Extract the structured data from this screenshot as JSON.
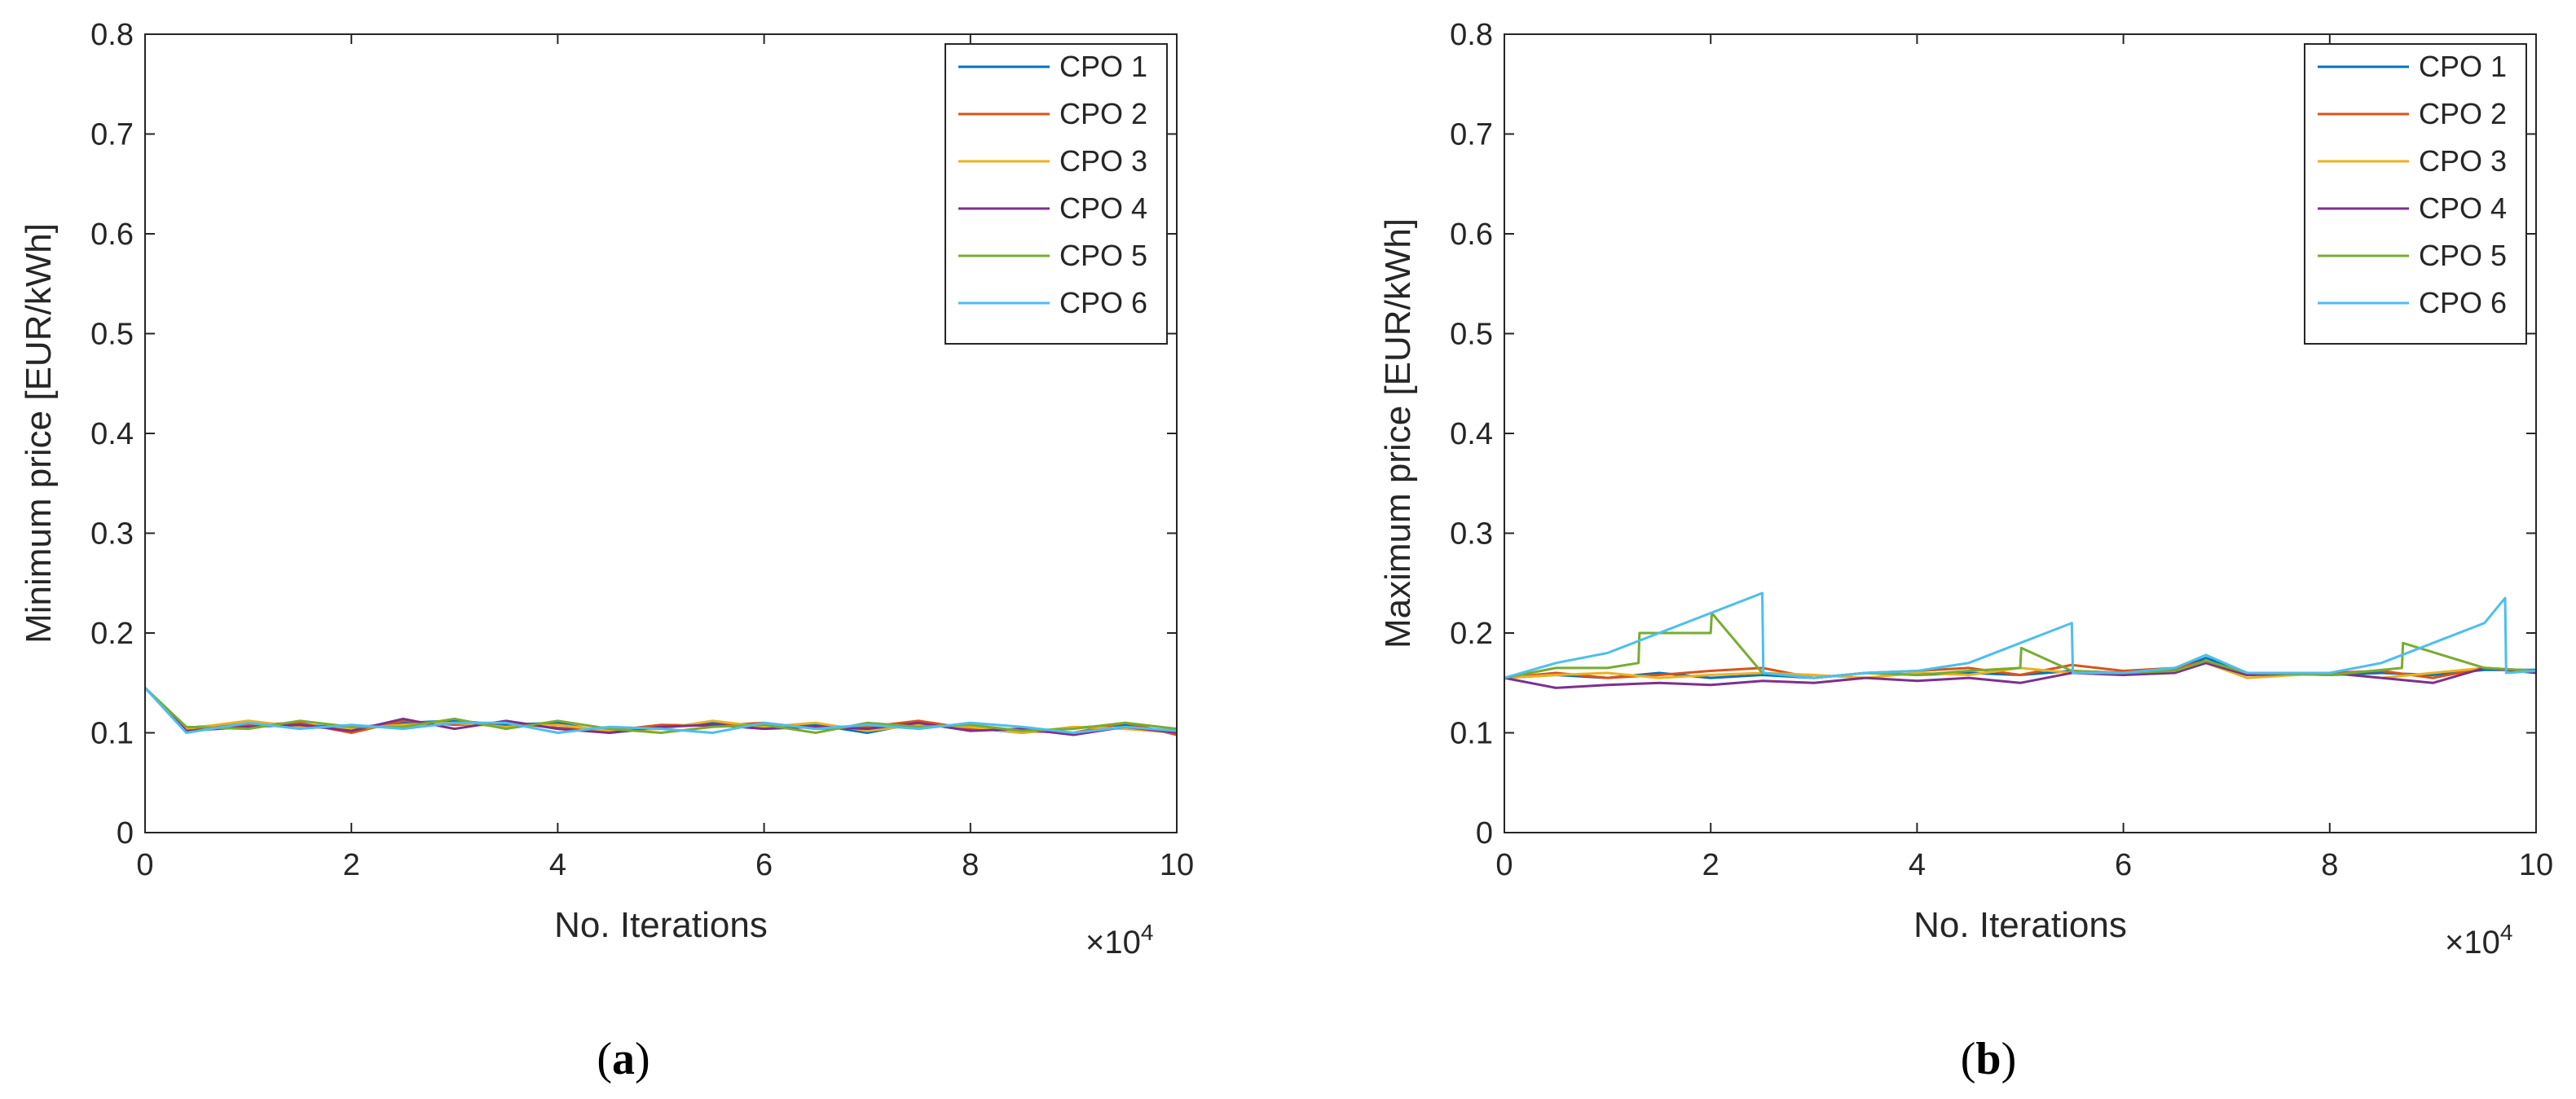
{
  "colors": {
    "CPO 1": "#0072BD",
    "CPO 2": "#D95319",
    "CPO 3": "#EDB120",
    "CPO 4": "#7E2F8E",
    "CPO 5": "#77AC30",
    "CPO 6": "#4DBEEE"
  },
  "chart_data": [
    {
      "id": "a",
      "type": "line",
      "caption_letter": "a",
      "ylabel": "Minimum price [EUR/kWh]",
      "xlabel": "No. Iterations",
      "x_multiplier": "×10",
      "x_multiplier_exp": "4",
      "xlim": [
        0,
        10
      ],
      "ylim": [
        0,
        0.8
      ],
      "xticks": [
        0,
        2,
        4,
        6,
        8,
        10
      ],
      "yticks": [
        0,
        0.1,
        0.2,
        0.3,
        0.4,
        0.5,
        0.6,
        0.7,
        0.8
      ],
      "legend_position": "top-right",
      "series": [
        {
          "name": "CPO 1",
          "x": [
            0,
            0.4,
            1,
            1.5,
            2,
            2.5,
            3,
            3.5,
            4,
            4.5,
            5,
            5.5,
            6,
            6.5,
            7,
            7.5,
            8,
            8.5,
            9,
            9.5,
            10
          ],
          "y": [
            0.145,
            0.105,
            0.11,
            0.108,
            0.105,
            0.11,
            0.112,
            0.108,
            0.11,
            0.1,
            0.105,
            0.11,
            0.105,
            0.108,
            0.1,
            0.11,
            0.105,
            0.1,
            0.105,
            0.108,
            0.1
          ]
        },
        {
          "name": "CPO 2",
          "x": [
            0,
            0.4,
            1,
            1.5,
            2,
            2.5,
            3,
            3.5,
            4,
            4.5,
            5,
            5.5,
            6,
            6.5,
            7,
            7.5,
            8,
            8.5,
            9,
            9.5,
            10
          ],
          "y": [
            0.145,
            0.103,
            0.108,
            0.11,
            0.1,
            0.112,
            0.108,
            0.11,
            0.105,
            0.102,
            0.108,
            0.107,
            0.11,
            0.104,
            0.106,
            0.112,
            0.104,
            0.102,
            0.1,
            0.11,
            0.098
          ]
        },
        {
          "name": "CPO 3",
          "x": [
            0,
            0.4,
            1,
            1.5,
            2,
            2.5,
            3,
            3.5,
            4,
            4.5,
            5,
            5.5,
            6,
            6.5,
            7,
            7.5,
            8,
            8.5,
            9,
            9.5,
            10
          ],
          "y": [
            0.145,
            0.104,
            0.112,
            0.106,
            0.104,
            0.108,
            0.11,
            0.106,
            0.108,
            0.102,
            0.104,
            0.112,
            0.106,
            0.11,
            0.102,
            0.108,
            0.106,
            0.1,
            0.106,
            0.104,
            0.1
          ]
        },
        {
          "name": "CPO 4",
          "x": [
            0,
            0.4,
            1,
            1.5,
            2,
            2.5,
            3,
            3.5,
            4,
            4.5,
            5,
            5.5,
            6,
            6.5,
            7,
            7.5,
            8,
            8.5,
            9,
            9.5,
            10
          ],
          "y": [
            0.145,
            0.102,
            0.106,
            0.108,
            0.102,
            0.114,
            0.104,
            0.112,
            0.104,
            0.1,
            0.106,
            0.108,
            0.104,
            0.106,
            0.104,
            0.11,
            0.102,
            0.104,
            0.098,
            0.106,
            0.1
          ]
        },
        {
          "name": "CPO 5",
          "x": [
            0,
            0.4,
            1,
            1.5,
            2,
            2.5,
            3,
            3.5,
            4,
            4.5,
            5,
            5.5,
            6,
            6.5,
            7,
            7.5,
            8,
            8.5,
            9,
            9.5,
            10
          ],
          "y": [
            0.145,
            0.106,
            0.104,
            0.112,
            0.106,
            0.106,
            0.114,
            0.104,
            0.112,
            0.104,
            0.1,
            0.106,
            0.108,
            0.1,
            0.11,
            0.106,
            0.108,
            0.102,
            0.104,
            0.11,
            0.104
          ]
        },
        {
          "name": "CPO 6",
          "x": [
            0,
            0.4,
            1,
            1.5,
            2,
            2.5,
            3,
            3.5,
            4,
            4.5,
            5,
            5.5,
            6,
            6.5,
            7,
            7.5,
            8,
            8.5,
            9,
            9.5,
            10
          ],
          "y": [
            0.145,
            0.1,
            0.11,
            0.104,
            0.108,
            0.104,
            0.11,
            0.11,
            0.1,
            0.106,
            0.104,
            0.1,
            0.11,
            0.104,
            0.108,
            0.104,
            0.11,
            0.106,
            0.1,
            0.106,
            0.102
          ]
        }
      ]
    },
    {
      "id": "b",
      "type": "line",
      "caption_letter": "b",
      "ylabel": "Maximum price [EUR/kWh]",
      "xlabel": "No. Iterations",
      "x_multiplier": "×10",
      "x_multiplier_exp": "4",
      "xlim": [
        0,
        10
      ],
      "ylim": [
        0,
        0.8
      ],
      "xticks": [
        0,
        2,
        4,
        6,
        8,
        10
      ],
      "yticks": [
        0,
        0.1,
        0.2,
        0.3,
        0.4,
        0.5,
        0.6,
        0.7,
        0.8
      ],
      "legend_position": "top-right",
      "series": [
        {
          "name": "CPO 1",
          "x": [
            0,
            0.5,
            1,
            1.5,
            2,
            2.5,
            3,
            3.5,
            4,
            4.5,
            5,
            5.5,
            6,
            6.5,
            6.8,
            7.2,
            8,
            8.5,
            9,
            9.5,
            10
          ],
          "y": [
            0.155,
            0.158,
            0.155,
            0.16,
            0.155,
            0.158,
            0.155,
            0.16,
            0.158,
            0.16,
            0.158,
            0.162,
            0.16,
            0.163,
            0.175,
            0.16,
            0.158,
            0.16,
            0.158,
            0.163,
            0.163
          ]
        },
        {
          "name": "CPO 2",
          "x": [
            0,
            0.5,
            1,
            1.5,
            2,
            2.5,
            3,
            3.5,
            4,
            4.5,
            5,
            5.5,
            6,
            6.5,
            6.8,
            7.2,
            8,
            8.5,
            9,
            9.5,
            10
          ],
          "y": [
            0.155,
            0.16,
            0.155,
            0.158,
            0.162,
            0.165,
            0.155,
            0.16,
            0.162,
            0.165,
            0.158,
            0.168,
            0.162,
            0.165,
            0.172,
            0.158,
            0.16,
            0.162,
            0.155,
            0.165,
            0.162
          ]
        },
        {
          "name": "CPO 3",
          "x": [
            0,
            0.5,
            1,
            1.5,
            2,
            2.5,
            3,
            3.5,
            4,
            4.5,
            5,
            5.5,
            6,
            6.5,
            6.8,
            7.2,
            8,
            8.5,
            9,
            9.5,
            10
          ],
          "y": [
            0.155,
            0.158,
            0.16,
            0.155,
            0.158,
            0.16,
            0.158,
            0.155,
            0.16,
            0.158,
            0.165,
            0.16,
            0.158,
            0.162,
            0.17,
            0.155,
            0.16,
            0.155,
            0.16,
            0.165,
            0.162
          ]
        },
        {
          "name": "CPO 4",
          "x": [
            0,
            0.5,
            1,
            1.5,
            2,
            2.5,
            3,
            3.5,
            4,
            4.5,
            5,
            5.5,
            6,
            6.5,
            6.8,
            7.2,
            8,
            8.5,
            9,
            9.5,
            10
          ],
          "y": [
            0.155,
            0.145,
            0.148,
            0.15,
            0.148,
            0.152,
            0.15,
            0.155,
            0.152,
            0.155,
            0.15,
            0.16,
            0.158,
            0.16,
            0.17,
            0.158,
            0.16,
            0.155,
            0.15,
            0.165,
            0.16
          ]
        },
        {
          "name": "CPO 5",
          "x": [
            0,
            0.5,
            1,
            1.3,
            1.31,
            2,
            2.01,
            2.5,
            3,
            3.5,
            4,
            4.5,
            5,
            5.01,
            5.5,
            6,
            6.5,
            6.8,
            7.2,
            8,
            8.7,
            8.71,
            9.5,
            10
          ],
          "y": [
            0.155,
            0.165,
            0.165,
            0.17,
            0.2,
            0.2,
            0.22,
            0.16,
            0.155,
            0.16,
            0.158,
            0.162,
            0.165,
            0.185,
            0.162,
            0.16,
            0.162,
            0.172,
            0.16,
            0.158,
            0.165,
            0.19,
            0.165,
            0.162
          ]
        },
        {
          "name": "CPO 6",
          "x": [
            0,
            0.5,
            1,
            1.5,
            2,
            2.5,
            2.51,
            3,
            3.5,
            4,
            4.5,
            5,
            5.5,
            5.51,
            6,
            6.5,
            6.8,
            7.2,
            8,
            8.5,
            9,
            9.5,
            9.7,
            9.71,
            10
          ],
          "y": [
            0.155,
            0.17,
            0.18,
            0.2,
            0.22,
            0.24,
            0.16,
            0.155,
            0.16,
            0.162,
            0.17,
            0.19,
            0.21,
            0.16,
            0.16,
            0.165,
            0.178,
            0.16,
            0.16,
            0.17,
            0.19,
            0.21,
            0.235,
            0.16,
            0.162
          ]
        }
      ]
    }
  ]
}
